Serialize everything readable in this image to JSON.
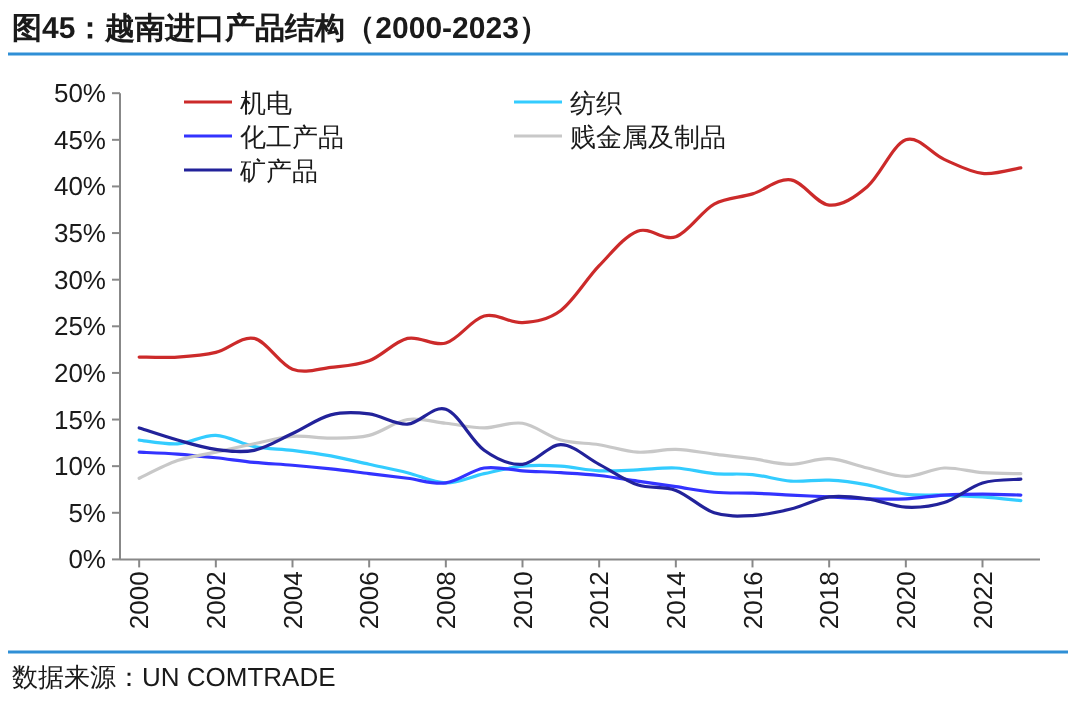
{
  "chart_data": {
    "type": "line",
    "title": "图45：越南进口产品结构（2000-2023）",
    "categories": [
      "2000",
      null,
      "2002",
      null,
      "2004",
      null,
      "2006",
      null,
      "2008",
      null,
      "2010",
      null,
      "2012",
      null,
      "2014",
      null,
      "2016",
      null,
      "2018",
      null,
      "2020",
      null,
      "2022",
      null
    ],
    "series": [
      {
        "name": "机电",
        "color": "#cc2a2a",
        "values": [
          21.7,
          21.7,
          22.2,
          23.7,
          20.4,
          20.6,
          21.3,
          23.7,
          23.2,
          26.1,
          25.4,
          26.7,
          31.5,
          35.2,
          34.6,
          38.1,
          39.2,
          40.7,
          38.0,
          40.0,
          45.0,
          42.9,
          41.4,
          42.0
        ]
      },
      {
        "name": "纺织",
        "color": "#33ccff",
        "values": [
          12.8,
          12.4,
          13.3,
          12.1,
          11.7,
          11.1,
          10.2,
          9.3,
          8.2,
          9.2,
          10.0,
          10.0,
          9.5,
          9.6,
          9.8,
          9.2,
          9.1,
          8.4,
          8.5,
          8.0,
          7.0,
          6.9,
          6.7,
          6.3
        ]
      },
      {
        "name": "化工产品",
        "color": "#3333ff",
        "values": [
          11.5,
          11.3,
          10.9,
          10.4,
          10.1,
          9.7,
          9.2,
          8.7,
          8.2,
          9.8,
          9.5,
          9.3,
          9.0,
          8.4,
          7.8,
          7.2,
          7.1,
          6.9,
          6.7,
          6.5,
          6.5,
          6.9,
          7.0,
          6.9
        ]
      },
      {
        "name": "贱金属及制品",
        "color": "#c8c8c8",
        "values": [
          8.7,
          10.6,
          11.5,
          12.4,
          13.2,
          13.0,
          13.3,
          15.0,
          14.6,
          14.1,
          14.6,
          12.8,
          12.3,
          11.5,
          11.8,
          11.3,
          10.8,
          10.2,
          10.8,
          9.8,
          8.9,
          9.8,
          9.3,
          9.2
        ]
      },
      {
        "name": "矿产品",
        "color": "#22229a",
        "values": [
          14.1,
          12.8,
          11.8,
          11.7,
          13.5,
          15.5,
          15.6,
          14.5,
          16.1,
          11.7,
          10.2,
          12.3,
          10.2,
          8.0,
          7.4,
          5.0,
          4.7,
          5.4,
          6.7,
          6.5,
          5.6,
          6.1,
          8.2,
          8.6
        ]
      }
    ],
    "ylim": [
      0,
      50
    ],
    "yticks": [
      {
        "value": 0,
        "label": "0%"
      },
      {
        "value": 5,
        "label": "5%"
      },
      {
        "value": 10,
        "label": "10%"
      },
      {
        "value": 15,
        "label": "15%"
      },
      {
        "value": 20,
        "label": "20%"
      },
      {
        "value": 25,
        "label": "25%"
      },
      {
        "value": 30,
        "label": "30%"
      },
      {
        "value": 35,
        "label": "35%"
      },
      {
        "value": 40,
        "label": "40%"
      },
      {
        "value": 45,
        "label": "45%"
      },
      {
        "value": 50,
        "label": "50%"
      }
    ],
    "legend": "top",
    "annotations": [
      "数据来源：UN COMTRADE"
    ]
  }
}
